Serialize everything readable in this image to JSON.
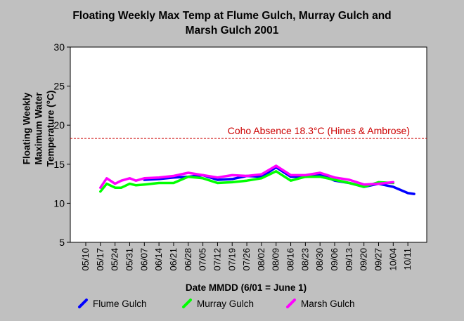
{
  "chart_data": {
    "type": "line",
    "title": "Floating Weekly Max Temp at Flume Gulch, Murray Gulch and Marsh Gulch 2001",
    "title_lines": [
      "Floating Weekly Max Temp at Flume Gulch, Murray Gulch and",
      "Marsh Gulch 2001"
    ],
    "xlabel": "Date MMDD (6/01 = June 1)",
    "ylabel_lines": [
      "Floating Weekly",
      "Maximum Water",
      "Temperature (°C)"
    ],
    "ylim": [
      5,
      30
    ],
    "yticks": [
      5,
      10,
      15,
      20,
      25,
      30
    ],
    "xlim": [
      "05/10",
      "10/17"
    ],
    "xticks": [
      "05/10",
      "05/17",
      "05/24",
      "05/31",
      "06/07",
      "06/14",
      "06/21",
      "06/28",
      "07/05",
      "07/12",
      "07/19",
      "07/26",
      "08/02",
      "08/09",
      "08/16",
      "08/23",
      "08/30",
      "09/06",
      "09/13",
      "09/20",
      "09/27",
      "10/04",
      "10/11"
    ],
    "grid": false,
    "reference_line": {
      "label": "Coho Absence 18.3°C (Hines & Ambrose)",
      "value": 18.3,
      "color": "#cc0000"
    },
    "series": [
      {
        "name": "Flume Gulch",
        "color": "#0000ff",
        "x": [
          "06/07",
          "06/14",
          "06/21",
          "06/28",
          "07/05",
          "07/12",
          "07/19",
          "07/26",
          "08/02",
          "08/09",
          "08/16",
          "08/23",
          "08/30",
          "09/06",
          "09/13",
          "09/20",
          "09/27",
          "10/04",
          "10/11",
          "10/14"
        ],
        "values": [
          13.0,
          13.1,
          13.3,
          13.4,
          13.6,
          13.0,
          13.1,
          13.5,
          13.4,
          14.6,
          13.4,
          13.4,
          13.7,
          12.9,
          12.6,
          12.1,
          12.5,
          12.1,
          11.3,
          11.2
        ]
      },
      {
        "name": "Murray Gulch",
        "color": "#00ff00",
        "x": [
          "05/17",
          "05/20",
          "05/24",
          "05/27",
          "05/31",
          "06/03",
          "06/07",
          "06/14",
          "06/21",
          "06/28",
          "07/05",
          "07/12",
          "07/19",
          "07/26",
          "08/02",
          "08/09",
          "08/16",
          "08/23",
          "08/30",
          "09/06",
          "09/13",
          "09/20",
          "09/27",
          "10/04"
        ],
        "values": [
          11.5,
          12.5,
          12.0,
          12.0,
          12.5,
          12.3,
          12.4,
          12.6,
          12.6,
          13.4,
          13.2,
          12.6,
          12.7,
          12.9,
          13.2,
          14.1,
          12.9,
          13.4,
          13.4,
          13.0,
          12.6,
          12.1,
          12.7,
          12.6
        ]
      },
      {
        "name": "Marsh Gulch",
        "color": "#ff00ff",
        "x": [
          "05/17",
          "05/20",
          "05/24",
          "05/27",
          "05/31",
          "06/03",
          "06/07",
          "06/14",
          "06/21",
          "06/28",
          "07/05",
          "07/12",
          "07/19",
          "07/26",
          "08/02",
          "08/09",
          "08/16",
          "08/23",
          "08/30",
          "09/06",
          "09/13",
          "09/20",
          "09/27",
          "10/04"
        ],
        "values": [
          12.0,
          13.2,
          12.5,
          12.9,
          13.2,
          12.9,
          13.2,
          13.3,
          13.5,
          13.9,
          13.6,
          13.3,
          13.6,
          13.5,
          13.7,
          14.8,
          13.6,
          13.6,
          13.9,
          13.3,
          13.0,
          12.4,
          12.5,
          12.7
        ]
      }
    ]
  }
}
